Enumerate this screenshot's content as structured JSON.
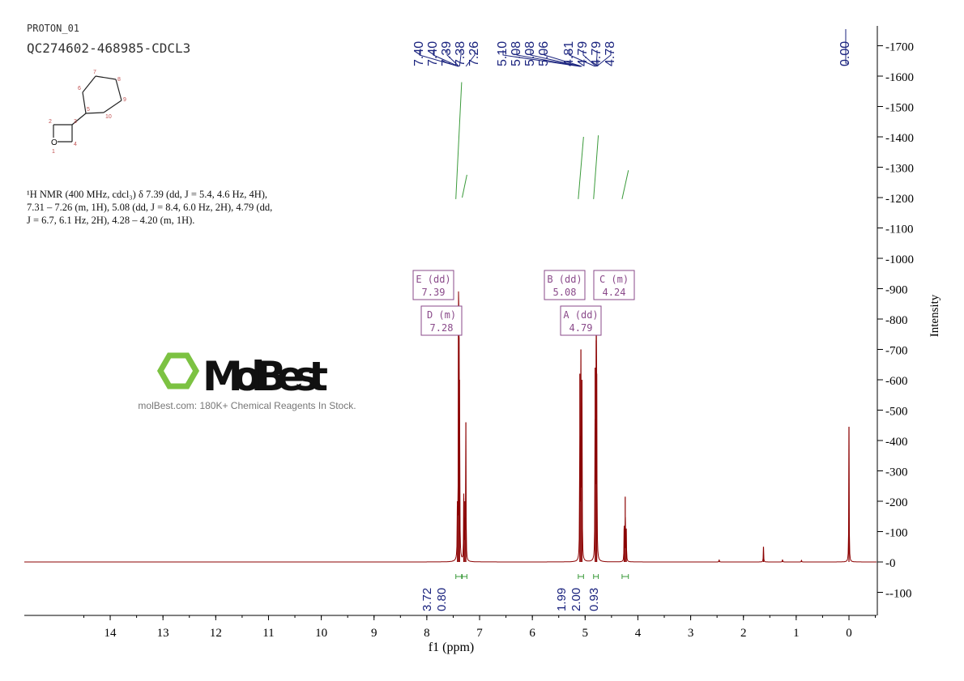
{
  "header": {
    "experiment": "PROTON_01",
    "sample": "QC274602-468985-CDCL3"
  },
  "description": [
    "¹H NMR (400 MHz, cdcl₃) δ 7.39 (dd, J = 5.4, 4.6 Hz, 4H),",
    "7.31 – 7.26 (m, 1H), 5.08 (dd, J = 8.4, 6.0 Hz, 2H), 4.79 (dd,",
    "J = 6.7, 6.1 Hz, 2H), 4.28 – 4.20 (m, 1H)."
  ],
  "structure": {
    "atom_labels": [
      "1",
      "2",
      "3",
      "4",
      "5",
      "6",
      "7",
      "8",
      "9",
      "10"
    ],
    "heteroatom": "O"
  },
  "watermark": {
    "brand": "MolBest",
    "tagline": "molBest.com: 180K+ Chemical Reagents In Stock."
  },
  "chart_data": {
    "type": "line",
    "xlabel": "f1 (ppm)",
    "ylabel": "Intensity",
    "xlim": [
      14.5,
      -0.5
    ],
    "ylim": [
      -170,
      1780
    ],
    "xticks": [
      14,
      13,
      12,
      11,
      10,
      9,
      8,
      7,
      6,
      5,
      4,
      3,
      2,
      1,
      0
    ],
    "yticks": [
      -100,
      0,
      100,
      200,
      300,
      400,
      500,
      600,
      700,
      800,
      900,
      1000,
      1100,
      1200,
      1300,
      1400,
      1500,
      1600,
      1700
    ],
    "line_color": "#8b0000",
    "peaks": [
      {
        "ppm": 7.42,
        "height": 200
      },
      {
        "ppm": 7.4,
        "height": 760
      },
      {
        "ppm": 7.39,
        "height": 740
      },
      {
        "ppm": 7.38,
        "height": 600
      },
      {
        "ppm": 7.3,
        "height": 210
      },
      {
        "ppm": 7.28,
        "height": 200
      },
      {
        "ppm": 7.26,
        "height": 460
      },
      {
        "ppm": 5.1,
        "height": 620
      },
      {
        "ppm": 5.08,
        "height": 700
      },
      {
        "ppm": 5.06,
        "height": 600
      },
      {
        "ppm": 4.81,
        "height": 640
      },
      {
        "ppm": 4.79,
        "height": 730
      },
      {
        "ppm": 4.78,
        "height": 620
      },
      {
        "ppm": 4.26,
        "height": 110
      },
      {
        "ppm": 4.24,
        "height": 215
      },
      {
        "ppm": 4.22,
        "height": 110
      },
      {
        "ppm": 2.46,
        "height": 8
      },
      {
        "ppm": 1.62,
        "height": 50
      },
      {
        "ppm": 1.26,
        "height": 8
      },
      {
        "ppm": 0.9,
        "height": 6
      },
      {
        "ppm": 0.0,
        "height": 445
      }
    ],
    "peak_labels": [
      "7.40",
      "7.40",
      "7.39",
      "7.38",
      "7.26",
      "5.10",
      "5.08",
      "5.08",
      "5.06",
      "4.81",
      "4.79",
      "4.79",
      "4.78",
      "0.00"
    ],
    "integrals": [
      {
        "value": "3.72",
        "from": 7.45,
        "to": 7.34
      },
      {
        "value": "0.80",
        "from": 7.33,
        "to": 7.24
      },
      {
        "value": "1.99",
        "from": 5.13,
        "to": 5.03
      },
      {
        "value": "2.00",
        "from": 4.84,
        "to": 4.75
      },
      {
        "value": "0.93",
        "from": 4.3,
        "to": 4.18
      }
    ],
    "multiplets": [
      {
        "name": "E",
        "type": "dd",
        "shift": "7.39"
      },
      {
        "name": "D",
        "type": "m",
        "shift": "7.28"
      },
      {
        "name": "B",
        "type": "dd",
        "shift": "5.08"
      },
      {
        "name": "A",
        "type": "dd",
        "shift": "4.79"
      },
      {
        "name": "C",
        "type": "m",
        "shift": "4.24"
      }
    ]
  }
}
